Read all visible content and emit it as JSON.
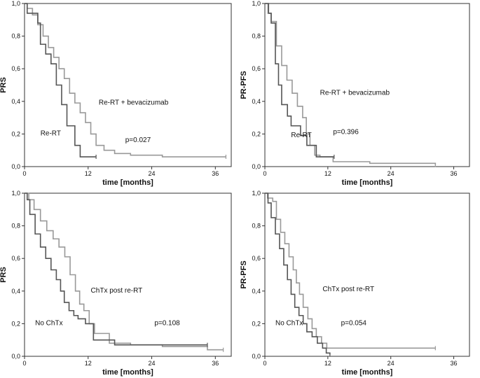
{
  "chart_data": [
    {
      "type": "line",
      "title": "",
      "ylabel": "PRS",
      "xlabel": "time [months]",
      "xlim": [
        0,
        39
      ],
      "ylim": [
        0,
        1
      ],
      "xticks": [
        "0",
        "12",
        "24",
        "36"
      ],
      "yticks": [
        "0,0",
        "0,2",
        "0,4",
        "0,6",
        "0,8",
        "1,0"
      ],
      "series": [
        {
          "name": "Re-RT + bevacizumab",
          "color": "#999999",
          "steps": [
            [
              0,
              1
            ],
            [
              0.5,
              0.97
            ],
            [
              1.5,
              0.93
            ],
            [
              2.5,
              0.87
            ],
            [
              3.5,
              0.8
            ],
            [
              4.5,
              0.73
            ],
            [
              5.5,
              0.67
            ],
            [
              6.5,
              0.6
            ],
            [
              7.5,
              0.54
            ],
            [
              8.5,
              0.45
            ],
            [
              9.5,
              0.39
            ],
            [
              10.5,
              0.33
            ],
            [
              11.5,
              0.27
            ],
            [
              12.5,
              0.2
            ],
            [
              13.5,
              0.13
            ],
            [
              15,
              0.1
            ],
            [
              17,
              0.08
            ],
            [
              20,
              0.07
            ],
            [
              26,
              0.06
            ],
            [
              38,
              0.06
            ]
          ],
          "end": 38
        },
        {
          "name": "Re-RT",
          "color": "#555555",
          "steps": [
            [
              0,
              1
            ],
            [
              0.5,
              0.94
            ],
            [
              2.5,
              0.88
            ],
            [
              3,
              0.75
            ],
            [
              4,
              0.69
            ],
            [
              5,
              0.63
            ],
            [
              6,
              0.5
            ],
            [
              7,
              0.38
            ],
            [
              8,
              0.25
            ],
            [
              9.5,
              0.13
            ],
            [
              10.5,
              0.06
            ],
            [
              13.5,
              0.06
            ]
          ],
          "end": 13.5
        }
      ],
      "annotations": [
        {
          "text": "Re-RT + bevacizumab",
          "x": 14,
          "y": 0.38
        },
        {
          "text": "Re-RT",
          "x": 3,
          "y": 0.19
        },
        {
          "text": "p=0.027",
          "x": 19,
          "y": 0.15
        }
      ]
    },
    {
      "type": "line",
      "title": "",
      "ylabel": "PR-PFS",
      "xlabel": "time [months]",
      "xlim": [
        0,
        39
      ],
      "ylim": [
        0,
        1
      ],
      "xticks": [
        "0",
        "12",
        "24",
        "36"
      ],
      "yticks": [
        "0,0",
        "0,2",
        "0,4",
        "0,6",
        "0,8",
        "1,0"
      ],
      "series": [
        {
          "name": "Re-RT + bevacizumab",
          "color": "#999999",
          "steps": [
            [
              0,
              1
            ],
            [
              0.6,
              0.94
            ],
            [
              1.2,
              0.89
            ],
            [
              2.2,
              0.74
            ],
            [
              3.2,
              0.62
            ],
            [
              4.2,
              0.53
            ],
            [
              5.2,
              0.45
            ],
            [
              6.2,
              0.37
            ],
            [
              7.2,
              0.3
            ],
            [
              7.9,
              0.2
            ],
            [
              8.6,
              0.13
            ],
            [
              9.5,
              0.07
            ],
            [
              10.5,
              0.06
            ],
            [
              13,
              0.03
            ],
            [
              20,
              0.02
            ],
            [
              28,
              0.02
            ],
            [
              32.5,
              0.01
            ]
          ],
          "end": 32.5
        },
        {
          "name": "Re-RT",
          "color": "#555555",
          "steps": [
            [
              0,
              1
            ],
            [
              0.7,
              0.94
            ],
            [
              1.2,
              0.88
            ],
            [
              2,
              0.63
            ],
            [
              2.6,
              0.5
            ],
            [
              3.2,
              0.38
            ],
            [
              4.3,
              0.31
            ],
            [
              5,
              0.25
            ],
            [
              6.8,
              0.19
            ],
            [
              8,
              0.13
            ],
            [
              9.8,
              0.06
            ],
            [
              13.2,
              0.06
            ]
          ],
          "end": 13.2
        }
      ],
      "annotations": [
        {
          "text": "Re-RT + bevacizumab",
          "x": 10.5,
          "y": 0.44
        },
        {
          "text": "Re-RT",
          "x": 5,
          "y": 0.18
        },
        {
          "text": "p=0.396",
          "x": 13,
          "y": 0.2
        }
      ]
    },
    {
      "type": "line",
      "title": "",
      "ylabel": "PRS",
      "xlabel": "time [months]",
      "xlim": [
        0,
        39
      ],
      "ylim": [
        0,
        1
      ],
      "xticks": [
        "0",
        "12",
        "24",
        "36"
      ],
      "yticks": [
        "0,0",
        "0,2",
        "0,4",
        "0,6",
        "0,8",
        "1,0"
      ],
      "series": [
        {
          "name": "ChTx post re-RT",
          "color": "#999999",
          "steps": [
            [
              0,
              1
            ],
            [
              0.8,
              0.96
            ],
            [
              1.8,
              0.9
            ],
            [
              3,
              0.83
            ],
            [
              4.2,
              0.77
            ],
            [
              5.4,
              0.72
            ],
            [
              6.5,
              0.67
            ],
            [
              7.6,
              0.61
            ],
            [
              8.6,
              0.5
            ],
            [
              9.6,
              0.4
            ],
            [
              10.4,
              0.32
            ],
            [
              11.2,
              0.28
            ],
            [
              12.2,
              0.2
            ],
            [
              13.2,
              0.14
            ],
            [
              16,
              0.08
            ],
            [
              20,
              0.07
            ],
            [
              26,
              0.06
            ],
            [
              34.5,
              0.04
            ],
            [
              37.5,
              0.04
            ]
          ],
          "end": 37.5
        },
        {
          "name": "No ChTx",
          "color": "#555555",
          "steps": [
            [
              0,
              1
            ],
            [
              0.5,
              0.96
            ],
            [
              1,
              0.87
            ],
            [
              2,
              0.75
            ],
            [
              3,
              0.67
            ],
            [
              4,
              0.6
            ],
            [
              5,
              0.53
            ],
            [
              6,
              0.47
            ],
            [
              6.8,
              0.4
            ],
            [
              7.5,
              0.33
            ],
            [
              8.4,
              0.28
            ],
            [
              9.3,
              0.25
            ],
            [
              10.1,
              0.23
            ],
            [
              11.5,
              0.2
            ],
            [
              13,
              0.1
            ],
            [
              17,
              0.07
            ],
            [
              26,
              0.07
            ],
            [
              34.5,
              0.07
            ]
          ],
          "end": 34.5
        }
      ],
      "annotations": [
        {
          "text": "ChTx post re-RT",
          "x": 12.5,
          "y": 0.39
        },
        {
          "text": "No ChTx",
          "x": 2,
          "y": 0.19
        },
        {
          "text": "p=0.108",
          "x": 24.5,
          "y": 0.19
        }
      ]
    },
    {
      "type": "line",
      "title": "",
      "ylabel": "PR-PFS",
      "xlabel": "time [months]",
      "xlim": [
        0,
        39
      ],
      "ylim": [
        0,
        1
      ],
      "xticks": [
        "0",
        "12",
        "24",
        "36"
      ],
      "yticks": [
        "0,0",
        "0,2",
        "0,4",
        "0,6",
        "0,8",
        "1,0"
      ],
      "series": [
        {
          "name": "ChTx post re-RT",
          "color": "#999999",
          "steps": [
            [
              0,
              1
            ],
            [
              0.5,
              0.97
            ],
            [
              1.5,
              0.95
            ],
            [
              2.2,
              0.84
            ],
            [
              3,
              0.76
            ],
            [
              3.8,
              0.69
            ],
            [
              4.6,
              0.61
            ],
            [
              5.4,
              0.53
            ],
            [
              6,
              0.45
            ],
            [
              6.6,
              0.38
            ],
            [
              7.3,
              0.3
            ],
            [
              8.2,
              0.23
            ],
            [
              9,
              0.17
            ],
            [
              9.8,
              0.12
            ],
            [
              10.8,
              0.08
            ],
            [
              11.8,
              0.05
            ],
            [
              12.5,
              0.05
            ],
            [
              32.5,
              0.05
            ]
          ],
          "end": 32.5
        },
        {
          "name": "No ChTx",
          "color": "#555555",
          "steps": [
            [
              0,
              1
            ],
            [
              0.6,
              0.94
            ],
            [
              1.2,
              0.85
            ],
            [
              2,
              0.75
            ],
            [
              2.8,
              0.66
            ],
            [
              3.6,
              0.56
            ],
            [
              4.3,
              0.47
            ],
            [
              5,
              0.38
            ],
            [
              5.7,
              0.3
            ],
            [
              6.5,
              0.25
            ],
            [
              7.3,
              0.2
            ],
            [
              8,
              0.15
            ],
            [
              9,
              0.12
            ],
            [
              10,
              0.08
            ],
            [
              11,
              0.05
            ],
            [
              11.7,
              0.02
            ],
            [
              12.4,
              0.01
            ]
          ],
          "end": 12.4
        }
      ],
      "annotations": [
        {
          "text": "ChTx post re-RT",
          "x": 11,
          "y": 0.4
        },
        {
          "text": "No ChTx",
          "x": 2,
          "y": 0.19
        },
        {
          "text": "p=0.054",
          "x": 14.5,
          "y": 0.19
        }
      ]
    }
  ]
}
